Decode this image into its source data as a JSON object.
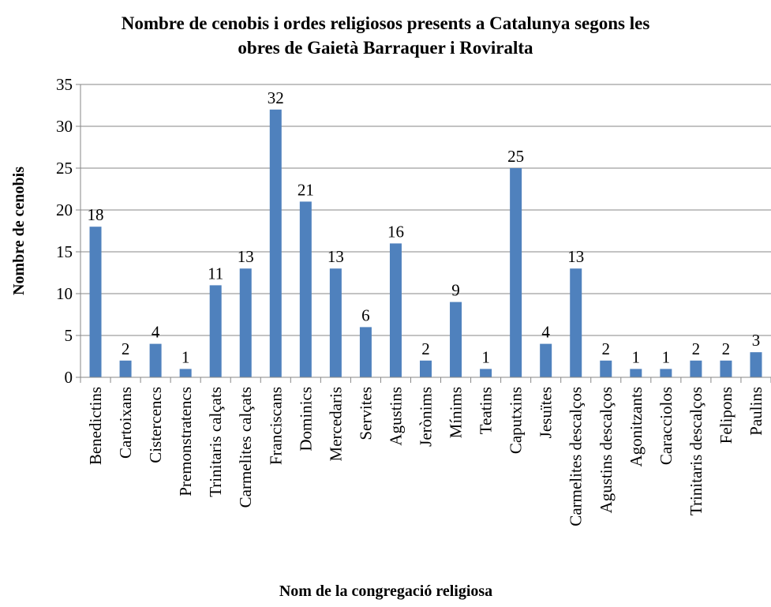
{
  "chart_data": {
    "type": "bar",
    "title_lines": [
      "Nombre de cenobis i ordes religiosos presents a Catalunya segons les",
      "obres de Gaietà Barraquer i Roviralta"
    ],
    "xlabel": "Nom de la congregació religiosa",
    "ylabel": "Nombre de cenobis",
    "ylim": [
      0,
      35
    ],
    "yticks": [
      0,
      5,
      10,
      15,
      20,
      25,
      30,
      35
    ],
    "grid": "horizontal",
    "legend": "none",
    "bar_color": "#4F81BD",
    "categories": [
      "Benedictins",
      "Cartoixans",
      "Cistercencs",
      "Premonstratencs",
      "Trinitaris calçats",
      "Carmelites calçats",
      "Franciscans",
      "Dominics",
      "Mercedaris",
      "Servites",
      "Agustins",
      "Jerònims",
      "Mínims",
      "Teatins",
      "Caputxins",
      "Jesuïtes",
      "Carmelites descalços",
      "Agustins descalços",
      "Agonitzants",
      "Caracciolos",
      "Trinitaris descalços",
      "Felipons",
      "Paulins"
    ],
    "values": [
      18,
      2,
      4,
      1,
      11,
      13,
      32,
      21,
      13,
      6,
      16,
      2,
      9,
      1,
      25,
      4,
      13,
      2,
      1,
      1,
      2,
      2,
      3
    ]
  }
}
